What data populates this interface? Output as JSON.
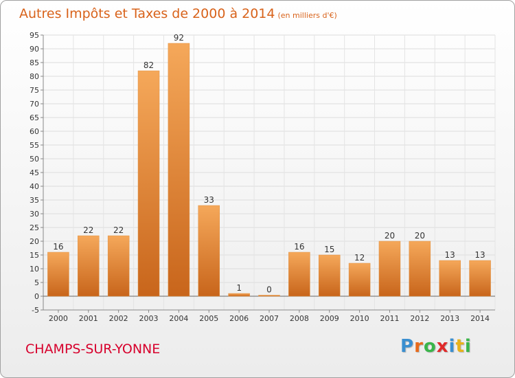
{
  "title": "Autres Impôts et Taxes de 2000 à 2014",
  "subtitle": "(en milliers d'€)",
  "commune": "CHAMPS-SUR-YONNE",
  "logo": {
    "letters": [
      "P",
      "r",
      "o",
      "x",
      "i",
      "t",
      "i"
    ],
    "colors": [
      "#3a8fd0",
      "#e86a1a",
      "#3ab54a",
      "#e02a2a",
      "#3a8fd0",
      "#e8b21a",
      "#3ab54a"
    ]
  },
  "colors": {
    "bar_light": "#f5a85a",
    "bar_dark": "#c8651b",
    "title": "#d8621a",
    "commune": "#d7002c"
  },
  "chart_data": {
    "type": "bar",
    "title": "Autres Impôts et Taxes de 2000 à 2014",
    "subtitle": "(en milliers d'€)",
    "xlabel": "",
    "ylabel": "",
    "categories": [
      "2000",
      "2001",
      "2002",
      "2003",
      "2004",
      "2005",
      "2006",
      "2007",
      "2008",
      "2009",
      "2010",
      "2011",
      "2012",
      "2013",
      "2014"
    ],
    "values": [
      16,
      22,
      22,
      82,
      92,
      33,
      1,
      0,
      16,
      15,
      12,
      20,
      20,
      13,
      13
    ],
    "ylim": [
      -5,
      95
    ],
    "yticks": [
      -5,
      0,
      5,
      10,
      15,
      20,
      25,
      30,
      35,
      40,
      45,
      50,
      55,
      60,
      65,
      70,
      75,
      80,
      85,
      90,
      95
    ],
    "grid": true,
    "legend": "none"
  }
}
